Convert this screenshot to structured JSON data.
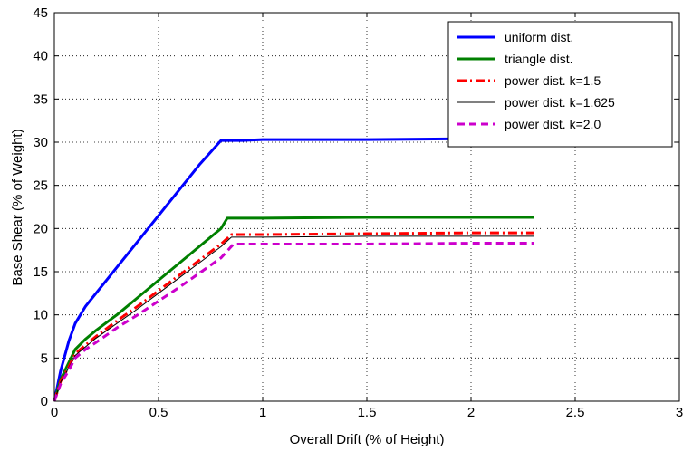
{
  "chart_data": {
    "type": "line",
    "xlabel": "Overall Drift (% of Height)",
    "ylabel": "Base Shear (% of Weight)",
    "xlim": [
      0,
      3
    ],
    "ylim": [
      0,
      45
    ],
    "xticks": [
      0,
      0.5,
      1,
      1.5,
      2,
      2.5,
      3
    ],
    "xtick_labels": [
      "0",
      "0.5",
      "1",
      "1.5",
      "2",
      "2.5",
      "3"
    ],
    "yticks": [
      0,
      5,
      10,
      15,
      20,
      25,
      30,
      35,
      40,
      45
    ],
    "ytick_labels": [
      "0",
      "5",
      "10",
      "15",
      "20",
      "25",
      "30",
      "35",
      "40",
      "45"
    ],
    "grid": true,
    "legend_position": "top-right",
    "series": [
      {
        "name": "uniform dist.",
        "color": "#0000ff",
        "line_style": "solid",
        "x": [
          0,
          0.03,
          0.07,
          0.1,
          0.15,
          0.2,
          0.3,
          0.4,
          0.5,
          0.6,
          0.7,
          0.8,
          0.9,
          1.0,
          1.2,
          1.5,
          2.0,
          2.3
        ],
        "y": [
          0,
          3.5,
          7.0,
          9.0,
          11.0,
          12.5,
          15.5,
          18.5,
          21.5,
          24.5,
          27.5,
          30.2,
          30.2,
          30.3,
          30.3,
          30.3,
          30.4,
          30.4
        ]
      },
      {
        "name": "triangle dist.",
        "color": "#008000",
        "line_style": "solid",
        "x": [
          0,
          0.03,
          0.07,
          0.1,
          0.15,
          0.2,
          0.3,
          0.4,
          0.5,
          0.6,
          0.7,
          0.8,
          0.83,
          1.0,
          1.5,
          2.0,
          2.3
        ],
        "y": [
          0,
          2.5,
          4.5,
          6.0,
          7.2,
          8.2,
          10.0,
          12.0,
          14.0,
          16.0,
          18.0,
          20.0,
          21.2,
          21.2,
          21.3,
          21.3,
          21.3
        ]
      },
      {
        "name": "power dist.  k=1.5",
        "color": "#ff0000",
        "line_style": "dash-dot",
        "x": [
          0,
          0.03,
          0.07,
          0.1,
          0.15,
          0.2,
          0.3,
          0.4,
          0.5,
          0.6,
          0.7,
          0.8,
          0.85,
          1.0,
          1.5,
          2.0,
          2.3
        ],
        "y": [
          0,
          2.3,
          4.0,
          5.5,
          6.5,
          7.5,
          9.3,
          11.0,
          12.8,
          14.6,
          16.4,
          18.2,
          19.3,
          19.3,
          19.4,
          19.5,
          19.5
        ]
      },
      {
        "name": "power dist.  k=1.625",
        "color": "#000000",
        "line_style": "thin",
        "x": [
          0,
          0.03,
          0.07,
          0.1,
          0.15,
          0.2,
          0.3,
          0.4,
          0.5,
          0.6,
          0.7,
          0.8,
          0.85,
          1.0,
          1.5,
          2.0,
          2.3
        ],
        "y": [
          0,
          2.2,
          3.9,
          5.3,
          6.3,
          7.3,
          9.0,
          10.7,
          12.5,
          14.3,
          16.1,
          17.9,
          19.0,
          19.0,
          19.1,
          19.1,
          19.1
        ]
      },
      {
        "name": "power dist.  k=2.0",
        "color": "#cc00cc",
        "line_style": "dashed",
        "x": [
          0,
          0.03,
          0.07,
          0.1,
          0.15,
          0.2,
          0.3,
          0.4,
          0.5,
          0.6,
          0.7,
          0.8,
          0.86,
          1.0,
          1.5,
          2.0,
          2.3
        ],
        "y": [
          0,
          2.0,
          3.6,
          5.0,
          6.0,
          6.8,
          8.5,
          10.0,
          11.6,
          13.2,
          14.9,
          16.6,
          18.2,
          18.2,
          18.2,
          18.3,
          18.3
        ]
      }
    ]
  }
}
